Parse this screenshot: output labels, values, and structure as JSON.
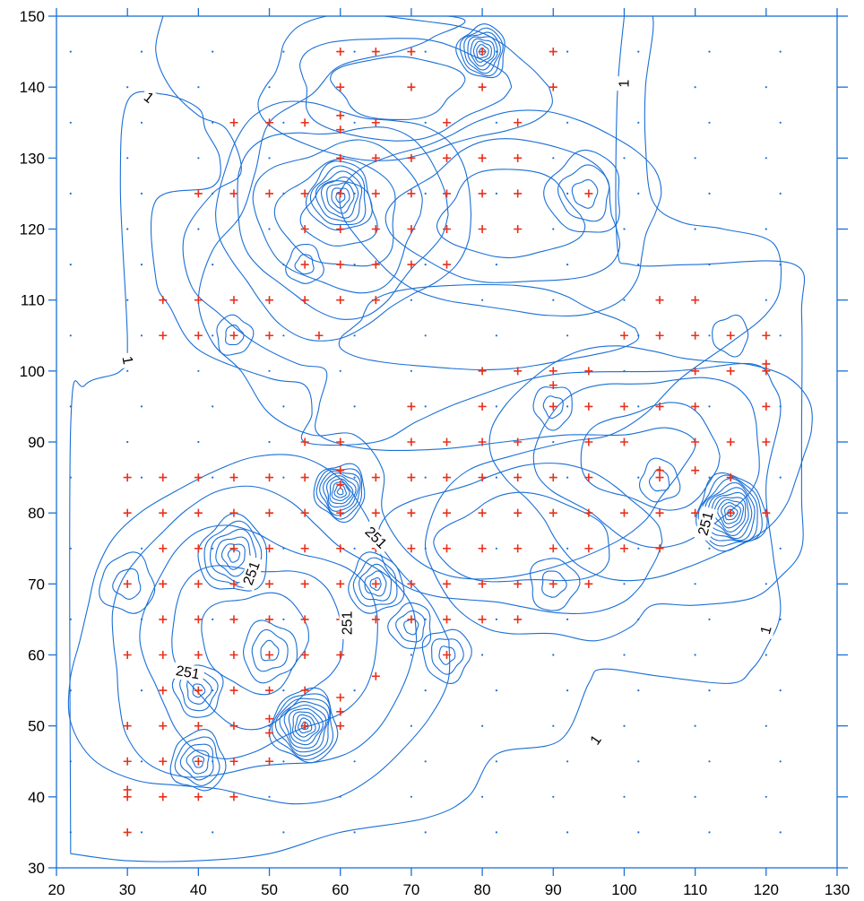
{
  "chart_data": {
    "type": "contour",
    "title": "",
    "xlabel": "",
    "ylabel": "",
    "xlim": [
      20,
      130
    ],
    "ylim": [
      30,
      150
    ],
    "x_ticks": [
      20,
      30,
      40,
      50,
      60,
      70,
      80,
      90,
      100,
      110,
      120,
      130
    ],
    "y_ticks": [
      30,
      40,
      50,
      60,
      70,
      80,
      90,
      100,
      110,
      120,
      130,
      140,
      150
    ],
    "x_tick_labels": [
      "20",
      "30",
      "40",
      "50",
      "60",
      "70",
      "80",
      "90",
      "100",
      "110",
      "120",
      "130"
    ],
    "y_tick_labels": [
      "30",
      "40",
      "50",
      "60",
      "70",
      "80",
      "90",
      "100",
      "110",
      "120",
      "130",
      "140",
      "150"
    ],
    "grid": false,
    "colors": {
      "axis": "#1a6fd6",
      "contour": "#1a6fd6",
      "sample_point": "#e8301c",
      "grid_point": "#1a6fd6"
    },
    "contour_labels": [
      {
        "text": "1",
        "x": 33,
        "y": 138.5,
        "angle": 38
      },
      {
        "text": "1",
        "x": 30,
        "y": 101.5,
        "angle": 80
      },
      {
        "text": "1",
        "x": 100,
        "y": 140.5,
        "angle": -90
      },
      {
        "text": "1",
        "x": 120,
        "y": 63.5,
        "angle": -75
      },
      {
        "text": "1",
        "x": 96,
        "y": 48,
        "angle": -55
      },
      {
        "text": "251",
        "x": 47.5,
        "y": 71.5,
        "angle": -70
      },
      {
        "text": "251",
        "x": 38.5,
        "y": 57.5,
        "angle": 10
      },
      {
        "text": "251",
        "x": 65,
        "y": 76.5,
        "angle": 45
      },
      {
        "text": "251",
        "x": 61,
        "y": 64.5,
        "angle": -90
      },
      {
        "text": "251",
        "x": 111.5,
        "y": 78.5,
        "angle": -75
      }
    ],
    "hotspots": [
      {
        "x": 80,
        "y": 145,
        "rings": 8,
        "spread": 3.2
      },
      {
        "x": 60,
        "y": 124.5,
        "rings": 7,
        "spread": 4.2
      },
      {
        "x": 94.5,
        "y": 125,
        "rings": 3,
        "spread": 5
      },
      {
        "x": 60,
        "y": 83,
        "rings": 9,
        "spread": 3.4
      },
      {
        "x": 115,
        "y": 80,
        "rings": 11,
        "spread": 4.6
      },
      {
        "x": 45,
        "y": 74,
        "rings": 6,
        "spread": 4.6
      },
      {
        "x": 65,
        "y": 70,
        "rings": 5,
        "spread": 3.6
      },
      {
        "x": 55,
        "y": 50,
        "rings": 10,
        "spread": 4.4
      },
      {
        "x": 40,
        "y": 55,
        "rings": 4,
        "spread": 3.2
      },
      {
        "x": 40,
        "y": 45,
        "rings": 5,
        "spread": 3.6
      },
      {
        "x": 30,
        "y": 70,
        "rings": 2,
        "spread": 3.6
      },
      {
        "x": 50,
        "y": 60.5,
        "rings": 3,
        "spread": 3.6
      },
      {
        "x": 75,
        "y": 60,
        "rings": 3,
        "spread": 3.2
      },
      {
        "x": 70,
        "y": 64,
        "rings": 3,
        "spread": 2.8
      },
      {
        "x": 55,
        "y": 115,
        "rings": 2,
        "spread": 2.4
      },
      {
        "x": 45,
        "y": 105,
        "rings": 2,
        "spread": 2.4
      },
      {
        "x": 90,
        "y": 95,
        "rings": 2,
        "spread": 2.6
      },
      {
        "x": 115,
        "y": 105,
        "rings": 1,
        "spread": 2.4
      },
      {
        "x": 105,
        "y": 84.5,
        "rings": 2,
        "spread": 2.6
      },
      {
        "x": 90,
        "y": 70,
        "rings": 2,
        "spread": 3.2
      }
    ],
    "outer_contours": [
      [
        [
          22,
          32
        ],
        [
          22,
          92
        ],
        [
          24,
          98
        ],
        [
          29,
          100
        ],
        [
          30,
          104
        ],
        [
          29,
          126
        ],
        [
          30,
          138
        ],
        [
          35,
          139
        ],
        [
          40,
          137
        ],
        [
          41,
          134
        ],
        [
          43,
          130
        ],
        [
          42,
          126
        ],
        [
          34,
          124
        ],
        [
          34,
          113
        ],
        [
          36,
          109
        ],
        [
          40,
          103
        ],
        [
          50,
          99
        ],
        [
          55,
          98
        ],
        [
          56,
          94
        ],
        [
          55,
          90
        ],
        [
          65,
          90
        ],
        [
          71,
          93
        ],
        [
          78,
          96
        ],
        [
          90,
          99.5
        ],
        [
          107,
          100
        ],
        [
          118,
          101
        ],
        [
          121,
          98
        ],
        [
          122,
          94
        ],
        [
          120,
          84
        ],
        [
          121,
          74
        ],
        [
          122,
          66
        ],
        [
          120,
          61
        ],
        [
          118,
          58
        ],
        [
          115,
          56
        ],
        [
          105,
          57
        ],
        [
          97,
          58
        ],
        [
          95,
          56
        ],
        [
          91,
          48
        ],
        [
          82,
          46
        ],
        [
          78,
          40
        ],
        [
          72,
          37
        ],
        [
          60,
          35
        ],
        [
          50,
          32
        ],
        [
          40,
          31
        ],
        [
          30,
          31
        ],
        [
          22,
          32
        ]
      ],
      [
        [
          35,
          150
        ],
        [
          34,
          145
        ],
        [
          36,
          140
        ],
        [
          40,
          136
        ],
        [
          44,
          134
        ],
        [
          46,
          128
        ],
        [
          42,
          125
        ],
        [
          38,
          119
        ],
        [
          39,
          112
        ],
        [
          43,
          108
        ],
        [
          48,
          104
        ],
        [
          54,
          101
        ],
        [
          58,
          100
        ],
        [
          57,
          95
        ],
        [
          57,
          91
        ],
        [
          64,
          89
        ],
        [
          74,
          89
        ],
        [
          83,
          90
        ],
        [
          92,
          91
        ],
        [
          100,
          91
        ],
        [
          106,
          92
        ],
        [
          110,
          90
        ],
        [
          108,
          86
        ],
        [
          105,
          82
        ],
        [
          103,
          79
        ],
        [
          99,
          76
        ],
        [
          92,
          73
        ],
        [
          84,
          71
        ],
        [
          76,
          71
        ],
        [
          70,
          74
        ],
        [
          66,
          80
        ],
        [
          66,
          86
        ],
        [
          62,
          91
        ],
        [
          56,
          91
        ],
        [
          50,
          94
        ],
        [
          46,
          100
        ],
        [
          42,
          104
        ],
        [
          40,
          110
        ],
        [
          42,
          117
        ],
        [
          46,
          122
        ],
        [
          48,
          128
        ],
        [
          50,
          135
        ],
        [
          56,
          139
        ],
        [
          60,
          143
        ],
        [
          68,
          145
        ],
        [
          73,
          147
        ],
        [
          75,
          150
        ],
        [
          35,
          150
        ]
      ],
      [
        [
          100,
          150
        ],
        [
          99,
          138
        ],
        [
          99,
          118
        ],
        [
          101,
          115
        ],
        [
          110,
          115
        ],
        [
          124,
          115
        ],
        [
          125,
          108
        ],
        [
          125,
          92
        ],
        [
          125,
          82
        ],
        [
          125,
          75
        ],
        [
          122,
          71
        ],
        [
          118,
          68
        ],
        [
          110,
          67
        ],
        [
          104,
          67
        ],
        [
          101,
          64
        ],
        [
          96,
          62
        ],
        [
          90,
          63
        ],
        [
          84,
          63
        ],
        [
          80,
          64
        ],
        [
          76,
          67
        ],
        [
          73,
          72
        ],
        [
          72,
          76
        ],
        [
          74,
          82
        ],
        [
          78,
          86
        ],
        [
          84,
          88
        ],
        [
          92,
          90
        ],
        [
          98,
          91
        ],
        [
          103,
          94
        ],
        [
          108,
          99
        ],
        [
          115,
          104
        ],
        [
          120,
          108
        ],
        [
          122,
          112
        ],
        [
          121,
          118
        ],
        [
          114,
          120
        ],
        [
          108,
          121
        ],
        [
          104,
          124
        ],
        [
          103,
          132
        ],
        [
          103,
          140
        ],
        [
          104,
          150
        ],
        [
          100,
          150
        ]
      ]
    ],
    "blobs": [
      {
        "cx": 48,
        "cy": 62,
        "rx": 26,
        "ry": 24,
        "rings": 5
      },
      {
        "cx": 60,
        "cy": 122,
        "rx": 18,
        "ry": 16,
        "rings": 5
      },
      {
        "cx": 84,
        "cy": 122,
        "rx": 22,
        "ry": 14,
        "rings": 3
      },
      {
        "cx": 80,
        "cy": 106,
        "rx": 20,
        "ry": 6,
        "rings": 1
      },
      {
        "cx": 104,
        "cy": 88,
        "rx": 22,
        "ry": 16,
        "rings": 3
      },
      {
        "cx": 86,
        "cy": 76,
        "rx": 20,
        "ry": 10,
        "rings": 2
      },
      {
        "cx": 68,
        "cy": 140,
        "rx": 20,
        "ry": 10,
        "rings": 3
      }
    ],
    "sample_points": [
      [
        60,
        145
      ],
      [
        65,
        145
      ],
      [
        70,
        145
      ],
      [
        80,
        145
      ],
      [
        90,
        145
      ],
      [
        60,
        140
      ],
      [
        70,
        140
      ],
      [
        80,
        140
      ],
      [
        90,
        140
      ],
      [
        45,
        135
      ],
      [
        50,
        135
      ],
      [
        55,
        135
      ],
      [
        60,
        136
      ],
      [
        60,
        134
      ],
      [
        65,
        135
      ],
      [
        75,
        135
      ],
      [
        85,
        135
      ],
      [
        60,
        130
      ],
      [
        65,
        130
      ],
      [
        70,
        130
      ],
      [
        75,
        130
      ],
      [
        80,
        130
      ],
      [
        85,
        130
      ],
      [
        40,
        125
      ],
      [
        45,
        125
      ],
      [
        50,
        125
      ],
      [
        55,
        125
      ],
      [
        60,
        125
      ],
      [
        65,
        125
      ],
      [
        70,
        125
      ],
      [
        75,
        125
      ],
      [
        80,
        125
      ],
      [
        85,
        125
      ],
      [
        95,
        125
      ],
      [
        55,
        120
      ],
      [
        60,
        120
      ],
      [
        65,
        120
      ],
      [
        70,
        120
      ],
      [
        75,
        120
      ],
      [
        80,
        120
      ],
      [
        85,
        120
      ],
      [
        55,
        115
      ],
      [
        60,
        115
      ],
      [
        65,
        115
      ],
      [
        70,
        115
      ],
      [
        75,
        115
      ],
      [
        35,
        110
      ],
      [
        40,
        110
      ],
      [
        45,
        110
      ],
      [
        50,
        110
      ],
      [
        55,
        110
      ],
      [
        60,
        110
      ],
      [
        65,
        110
      ],
      [
        105,
        110
      ],
      [
        110,
        110
      ],
      [
        35,
        105
      ],
      [
        40,
        105
      ],
      [
        45,
        105
      ],
      [
        50,
        105
      ],
      [
        57,
        105
      ],
      [
        100,
        105
      ],
      [
        105,
        105
      ],
      [
        110,
        105
      ],
      [
        115,
        105
      ],
      [
        120,
        105
      ],
      [
        80,
        100
      ],
      [
        85,
        100
      ],
      [
        90,
        100
      ],
      [
        95,
        100
      ],
      [
        110,
        100
      ],
      [
        115,
        100
      ],
      [
        120,
        100
      ],
      [
        120,
        101
      ],
      [
        90,
        98
      ],
      [
        70,
        95
      ],
      [
        80,
        95
      ],
      [
        90,
        95
      ],
      [
        95,
        95
      ],
      [
        100,
        95
      ],
      [
        105,
        95
      ],
      [
        110,
        95
      ],
      [
        120,
        95
      ],
      [
        55,
        90
      ],
      [
        60,
        90
      ],
      [
        70,
        90
      ],
      [
        75,
        90
      ],
      [
        80,
        90
      ],
      [
        85,
        90
      ],
      [
        95,
        90
      ],
      [
        100,
        90
      ],
      [
        110,
        90
      ],
      [
        115,
        90
      ],
      [
        120,
        90
      ],
      [
        30,
        85
      ],
      [
        35,
        85
      ],
      [
        40,
        85
      ],
      [
        45,
        85
      ],
      [
        50,
        85
      ],
      [
        55,
        85
      ],
      [
        60,
        86
      ],
      [
        60,
        84
      ],
      [
        65,
        85
      ],
      [
        70,
        85
      ],
      [
        75,
        85
      ],
      [
        80,
        85
      ],
      [
        85,
        85
      ],
      [
        90,
        85
      ],
      [
        95,
        85
      ],
      [
        105,
        85
      ],
      [
        105,
        86
      ],
      [
        110,
        86
      ],
      [
        115,
        85
      ],
      [
        30,
        80
      ],
      [
        35,
        80
      ],
      [
        40,
        80
      ],
      [
        45,
        80
      ],
      [
        50,
        80
      ],
      [
        55,
        80
      ],
      [
        60,
        80
      ],
      [
        65,
        80
      ],
      [
        70,
        80
      ],
      [
        75,
        80
      ],
      [
        80,
        80
      ],
      [
        85,
        80
      ],
      [
        90,
        80
      ],
      [
        95,
        80
      ],
      [
        100,
        80
      ],
      [
        105,
        80
      ],
      [
        110,
        80
      ],
      [
        115,
        80
      ],
      [
        120,
        80
      ],
      [
        35,
        75
      ],
      [
        40,
        75
      ],
      [
        45,
        75
      ],
      [
        50,
        75
      ],
      [
        55,
        75
      ],
      [
        60,
        75
      ],
      [
        65,
        75
      ],
      [
        70,
        75
      ],
      [
        75,
        75
      ],
      [
        80,
        75
      ],
      [
        85,
        75
      ],
      [
        90,
        75
      ],
      [
        95,
        75
      ],
      [
        100,
        75
      ],
      [
        105,
        75
      ],
      [
        30,
        70
      ],
      [
        35,
        70
      ],
      [
        40,
        70
      ],
      [
        45,
        70
      ],
      [
        50,
        70
      ],
      [
        55,
        70
      ],
      [
        60,
        70
      ],
      [
        65,
        70
      ],
      [
        70,
        70
      ],
      [
        75,
        70
      ],
      [
        80,
        70
      ],
      [
        85,
        70
      ],
      [
        90,
        70
      ],
      [
        95,
        70
      ],
      [
        35,
        65
      ],
      [
        40,
        65
      ],
      [
        45,
        65
      ],
      [
        50,
        65
      ],
      [
        55,
        65
      ],
      [
        60,
        65
      ],
      [
        65,
        65
      ],
      [
        70,
        65
      ],
      [
        75,
        65
      ],
      [
        80,
        65
      ],
      [
        85,
        65
      ],
      [
        30,
        60
      ],
      [
        35,
        60
      ],
      [
        40,
        60
      ],
      [
        45,
        60
      ],
      [
        50,
        60
      ],
      [
        55,
        60
      ],
      [
        60,
        60
      ],
      [
        65,
        57
      ],
      [
        75,
        60
      ],
      [
        35,
        55
      ],
      [
        40,
        55
      ],
      [
        45,
        55
      ],
      [
        50,
        55
      ],
      [
        55,
        55
      ],
      [
        60,
        54
      ],
      [
        60,
        52
      ],
      [
        30,
        50
      ],
      [
        35,
        50
      ],
      [
        40,
        50
      ],
      [
        45,
        50
      ],
      [
        50,
        51
      ],
      [
        50,
        49
      ],
      [
        55,
        50
      ],
      [
        60,
        50
      ],
      [
        30,
        45
      ],
      [
        35,
        45
      ],
      [
        40,
        45
      ],
      [
        45,
        45
      ],
      [
        50,
        45
      ],
      [
        30,
        41
      ],
      [
        30,
        40
      ],
      [
        35,
        40
      ],
      [
        40,
        40
      ],
      [
        45,
        40
      ],
      [
        30,
        35
      ]
    ],
    "grid_point_spacing": 10,
    "grid_point_offset": [
      2,
      5
    ]
  }
}
